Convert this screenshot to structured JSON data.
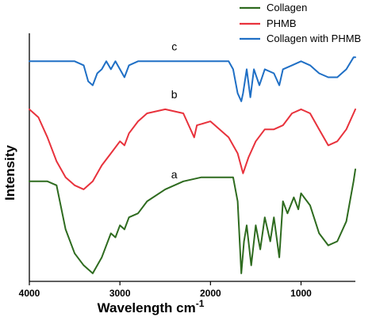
{
  "chart_data": {
    "type": "line",
    "title": "",
    "xlabel": "Wavelength cm",
    "xlabel_superscript": "-1",
    "ylabel": "Intensity",
    "xlim": [
      4000,
      400
    ],
    "x_reversed": true,
    "x_ticks": [
      4000,
      3000,
      2000,
      1000
    ],
    "x_tick_labels": [
      "4000",
      "3000",
      "2000",
      "1000"
    ],
    "y_ticks": [],
    "y_scale": "arbitrary (stacked spectra with vertical offsets)",
    "grid": false,
    "legend_placement": "top-right",
    "series": [
      {
        "name": "Collagen",
        "label": "a",
        "color": "#2e6b1f",
        "points": [
          [
            4000,
            0.25
          ],
          [
            3800,
            0.25
          ],
          [
            3700,
            0.24
          ],
          [
            3600,
            0.13
          ],
          [
            3500,
            0.07
          ],
          [
            3400,
            0.04
          ],
          [
            3300,
            0.02
          ],
          [
            3200,
            0.06
          ],
          [
            3100,
            0.12
          ],
          [
            3050,
            0.11
          ],
          [
            3000,
            0.14
          ],
          [
            2950,
            0.13
          ],
          [
            2900,
            0.16
          ],
          [
            2800,
            0.17
          ],
          [
            2700,
            0.2
          ],
          [
            2500,
            0.23
          ],
          [
            2300,
            0.25
          ],
          [
            2100,
            0.26
          ],
          [
            1900,
            0.26
          ],
          [
            1750,
            0.26
          ],
          [
            1700,
            0.2
          ],
          [
            1660,
            0.02
          ],
          [
            1630,
            0.1
          ],
          [
            1600,
            0.14
          ],
          [
            1550,
            0.04
          ],
          [
            1500,
            0.14
          ],
          [
            1450,
            0.08
          ],
          [
            1400,
            0.16
          ],
          [
            1340,
            0.1
          ],
          [
            1300,
            0.16
          ],
          [
            1240,
            0.06
          ],
          [
            1200,
            0.2
          ],
          [
            1150,
            0.17
          ],
          [
            1080,
            0.21
          ],
          [
            1030,
            0.18
          ],
          [
            1000,
            0.22
          ],
          [
            900,
            0.19
          ],
          [
            800,
            0.12
          ],
          [
            700,
            0.09
          ],
          [
            600,
            0.1
          ],
          [
            500,
            0.15
          ],
          [
            420,
            0.25
          ],
          [
            400,
            0.28
          ]
        ]
      },
      {
        "name": "PHMB",
        "label": "b",
        "color": "#e8323c",
        "points": [
          [
            4000,
            0.43
          ],
          [
            3900,
            0.41
          ],
          [
            3800,
            0.36
          ],
          [
            3700,
            0.3
          ],
          [
            3600,
            0.26
          ],
          [
            3500,
            0.24
          ],
          [
            3400,
            0.23
          ],
          [
            3300,
            0.25
          ],
          [
            3200,
            0.29
          ],
          [
            3100,
            0.32
          ],
          [
            3000,
            0.35
          ],
          [
            2950,
            0.34
          ],
          [
            2900,
            0.37
          ],
          [
            2800,
            0.4
          ],
          [
            2700,
            0.42
          ],
          [
            2500,
            0.43
          ],
          [
            2300,
            0.42
          ],
          [
            2180,
            0.36
          ],
          [
            2150,
            0.39
          ],
          [
            2000,
            0.4
          ],
          [
            1800,
            0.36
          ],
          [
            1700,
            0.32
          ],
          [
            1640,
            0.27
          ],
          [
            1580,
            0.31
          ],
          [
            1500,
            0.35
          ],
          [
            1400,
            0.38
          ],
          [
            1300,
            0.38
          ],
          [
            1200,
            0.39
          ],
          [
            1100,
            0.42
          ],
          [
            1000,
            0.43
          ],
          [
            900,
            0.42
          ],
          [
            800,
            0.38
          ],
          [
            700,
            0.34
          ],
          [
            600,
            0.35
          ],
          [
            500,
            0.38
          ],
          [
            420,
            0.42
          ],
          [
            400,
            0.43
          ]
        ]
      },
      {
        "name": "Collagen with PHMB",
        "label": "c",
        "color": "#1f6fc5",
        "points": [
          [
            4000,
            0.55
          ],
          [
            3800,
            0.55
          ],
          [
            3600,
            0.55
          ],
          [
            3500,
            0.55
          ],
          [
            3400,
            0.54
          ],
          [
            3350,
            0.5
          ],
          [
            3300,
            0.49
          ],
          [
            3250,
            0.52
          ],
          [
            3200,
            0.53
          ],
          [
            3150,
            0.55
          ],
          [
            3100,
            0.53
          ],
          [
            3050,
            0.55
          ],
          [
            3000,
            0.53
          ],
          [
            2950,
            0.51
          ],
          [
            2900,
            0.54
          ],
          [
            2800,
            0.55
          ],
          [
            2600,
            0.55
          ],
          [
            2400,
            0.55
          ],
          [
            2200,
            0.55
          ],
          [
            2000,
            0.55
          ],
          [
            1800,
            0.55
          ],
          [
            1750,
            0.53
          ],
          [
            1700,
            0.47
          ],
          [
            1660,
            0.45
          ],
          [
            1640,
            0.47
          ],
          [
            1600,
            0.53
          ],
          [
            1560,
            0.46
          ],
          [
            1520,
            0.53
          ],
          [
            1460,
            0.49
          ],
          [
            1400,
            0.53
          ],
          [
            1300,
            0.52
          ],
          [
            1240,
            0.49
          ],
          [
            1200,
            0.53
          ],
          [
            1100,
            0.54
          ],
          [
            1000,
            0.55
          ],
          [
            900,
            0.54
          ],
          [
            800,
            0.52
          ],
          [
            700,
            0.51
          ],
          [
            600,
            0.51
          ],
          [
            500,
            0.53
          ],
          [
            420,
            0.56
          ],
          [
            400,
            0.56
          ]
        ]
      }
    ]
  }
}
